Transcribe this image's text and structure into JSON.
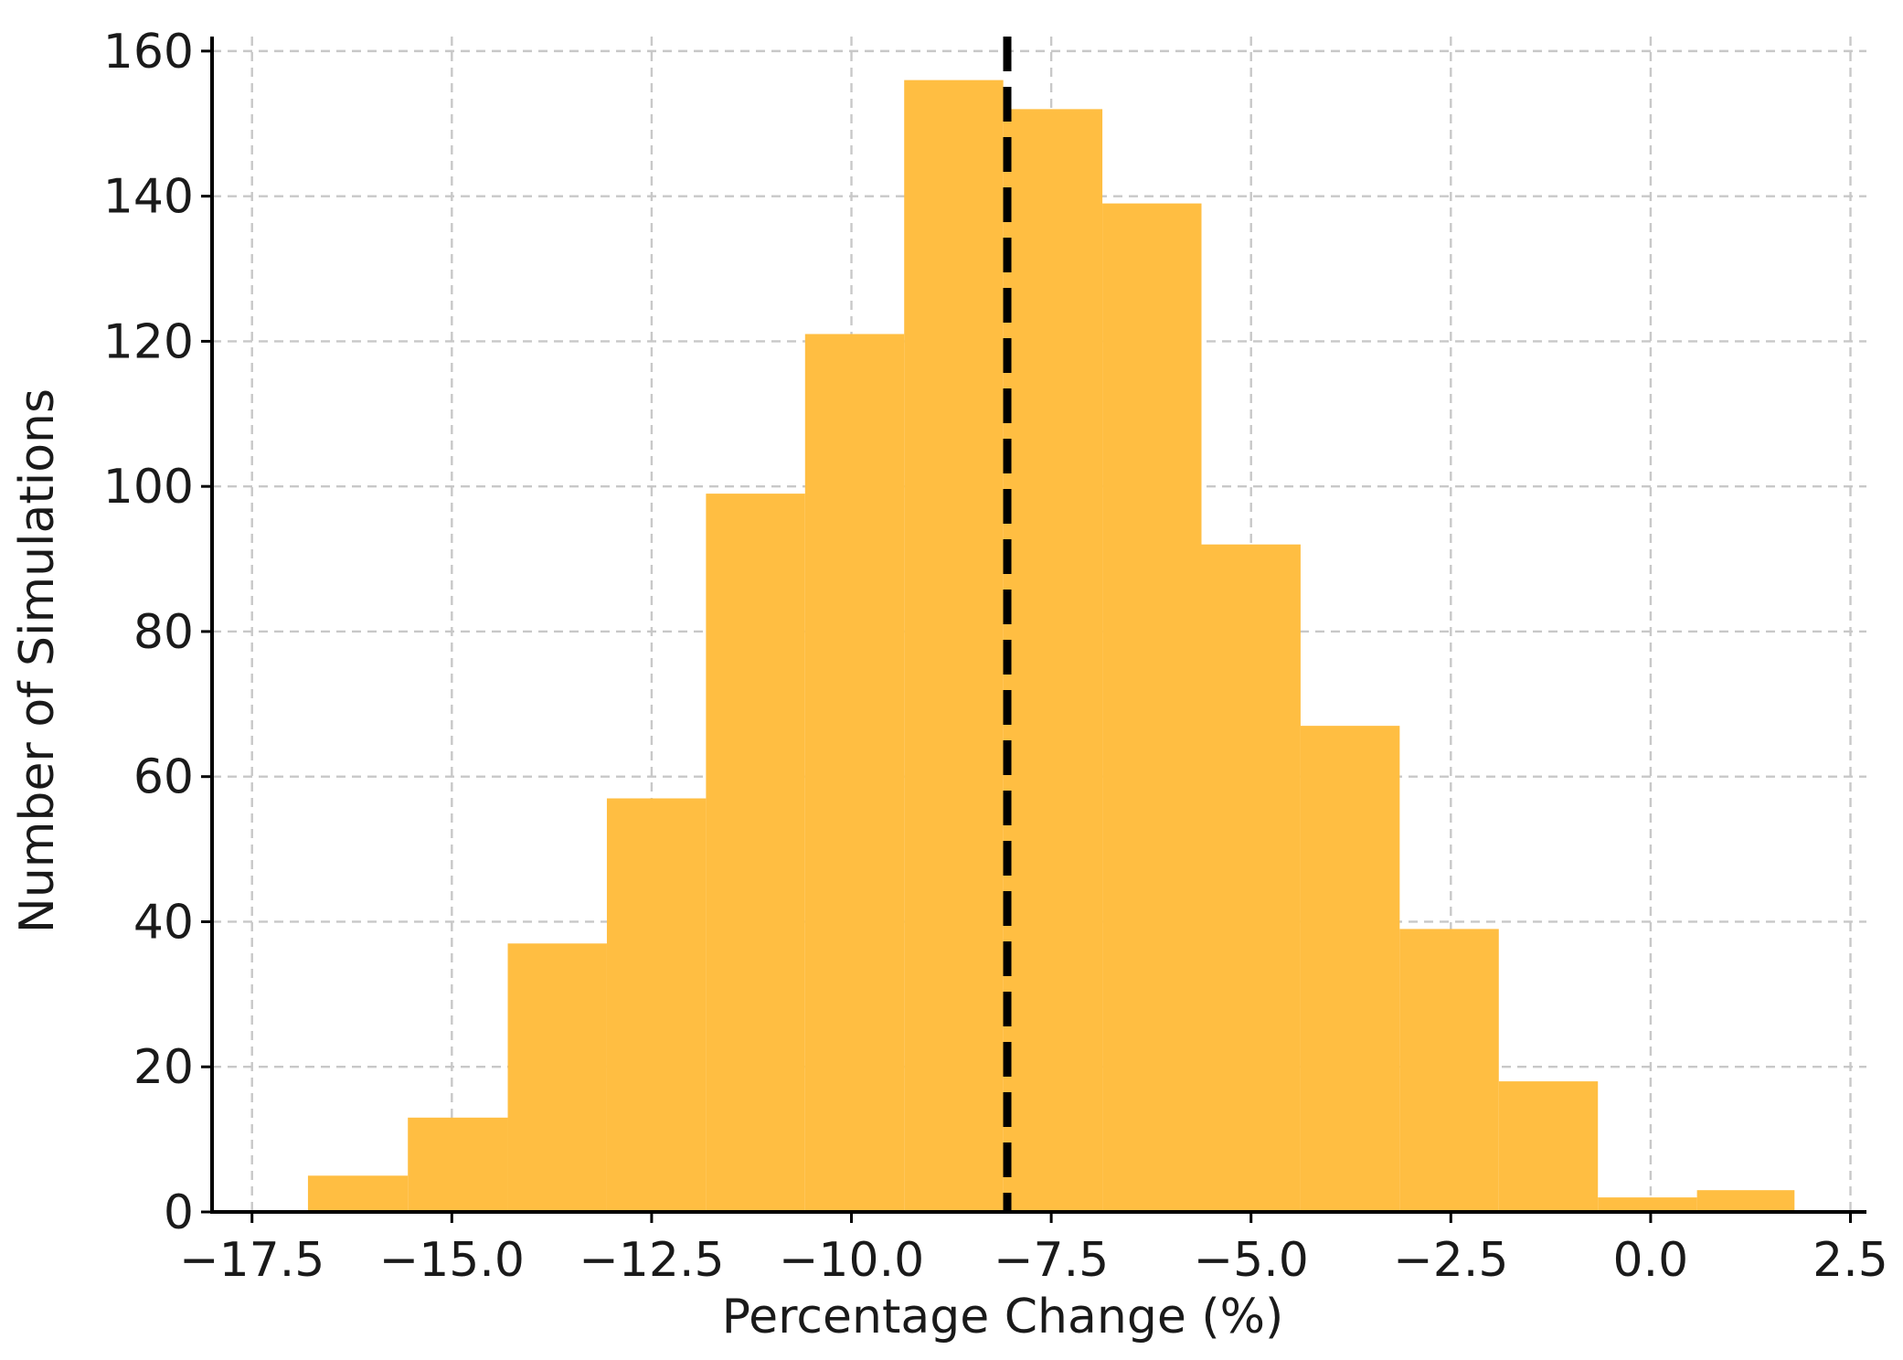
{
  "chart_data": {
    "type": "bar",
    "subtype": "histogram",
    "title": "",
    "xlabel": "Percentage Change (%)",
    "ylabel": "Number of Simulations",
    "xlim": [
      -18.0,
      2.7
    ],
    "ylim": [
      0,
      162
    ],
    "xticks": [
      -17.5,
      -15.0,
      -12.5,
      -10.0,
      -7.5,
      -5.0,
      -2.5,
      0.0,
      2.5
    ],
    "xtick_labels": [
      "−17.5",
      "−15.0",
      "−12.5",
      "−10.0",
      "−7.5",
      "−5.0",
      "−2.5",
      "0.0",
      "2.5"
    ],
    "yticks": [
      0,
      20,
      40,
      60,
      80,
      100,
      120,
      140,
      160
    ],
    "ytick_labels": [
      "0",
      "20",
      "40",
      "60",
      "80",
      "100",
      "120",
      "140",
      "160"
    ],
    "grid": true,
    "bar_color": "#FFBE42",
    "bins": [
      {
        "x0": -16.8,
        "x1": -15.55,
        "count": 5
      },
      {
        "x0": -15.55,
        "x1": -14.3,
        "count": 13
      },
      {
        "x0": -14.3,
        "x1": -13.06,
        "count": 37
      },
      {
        "x0": -13.06,
        "x1": -11.82,
        "count": 57
      },
      {
        "x0": -11.82,
        "x1": -10.58,
        "count": 99
      },
      {
        "x0": -10.58,
        "x1": -9.34,
        "count": 121
      },
      {
        "x0": -9.34,
        "x1": -8.1,
        "count": 156
      },
      {
        "x0": -8.1,
        "x1": -6.86,
        "count": 152
      },
      {
        "x0": -6.86,
        "x1": -5.62,
        "count": 139
      },
      {
        "x0": -5.62,
        "x1": -4.38,
        "count": 92
      },
      {
        "x0": -4.38,
        "x1": -3.14,
        "count": 67
      },
      {
        "x0": -3.14,
        "x1": -1.9,
        "count": 39
      },
      {
        "x0": -1.9,
        "x1": -0.66,
        "count": 18
      },
      {
        "x0": -0.66,
        "x1": 0.58,
        "count": 2
      },
      {
        "x0": 0.58,
        "x1": 1.8,
        "count": 3
      }
    ],
    "reference_line": {
      "x": -8.05,
      "style": "dashed",
      "color": "#000000"
    }
  }
}
